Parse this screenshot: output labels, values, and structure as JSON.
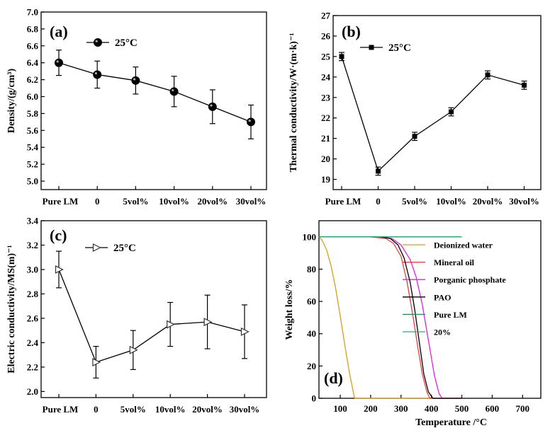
{
  "chart_data": [
    {
      "type": "line",
      "panel": "(a)",
      "categories": [
        "Pure LM",
        "0",
        "5vol%",
        "10vol%",
        "20vol%",
        "30vol%"
      ],
      "series": [
        {
          "name": "25°C",
          "values": [
            6.4,
            6.26,
            6.19,
            6.06,
            5.88,
            5.7
          ],
          "errors": [
            0.15,
            0.16,
            0.16,
            0.18,
            0.2,
            0.2
          ],
          "marker": "circle",
          "color": "#000000"
        }
      ],
      "ylabel": "Density/(g/cm³)",
      "ylim": [
        4.9,
        7.0
      ],
      "yticks": [
        "5.0",
        "5.2",
        "5.4",
        "5.6",
        "5.8",
        "6.0",
        "6.2",
        "6.4",
        "6.6",
        "6.8",
        "7.0"
      ],
      "legend": "top-left",
      "grid": false
    },
    {
      "type": "line",
      "panel": "(b)",
      "categories": [
        "Pure LM",
        "0",
        "5vol%",
        "10vol%",
        "20vol%",
        "30vol%"
      ],
      "series": [
        {
          "name": "25°C",
          "values": [
            25.0,
            19.4,
            21.1,
            22.3,
            24.1,
            23.6
          ],
          "errors": [
            0.2,
            0.2,
            0.2,
            0.2,
            0.2,
            0.2
          ],
          "marker": "square",
          "color": "#000000"
        }
      ],
      "ylabel": "Thermal conductivity/W·(m·k)⁻¹",
      "ylim": [
        18.5,
        27.0
      ],
      "yticks": [
        "19",
        "20",
        "21",
        "22",
        "23",
        "24",
        "25",
        "26",
        "27"
      ],
      "legend": "top-left",
      "grid": false
    },
    {
      "type": "line",
      "panel": "(c)",
      "categories": [
        "Pure LM",
        "0",
        "5vol%",
        "10vol%",
        "20vol%",
        "30vol%"
      ],
      "series": [
        {
          "name": "25°C",
          "values": [
            3.0,
            2.24,
            2.34,
            2.55,
            2.57,
            2.49
          ],
          "errors": [
            0.15,
            0.13,
            0.16,
            0.18,
            0.22,
            0.22
          ],
          "marker": "triangle-right",
          "color": "#000000"
        }
      ],
      "ylabel": "Electric conductivity/MS(m)⁻¹",
      "ylim": [
        1.95,
        3.4
      ],
      "yticks": [
        "2.0",
        "2.2",
        "2.4",
        "2.6",
        "2.8",
        "3.0",
        "3.2",
        "3.4"
      ],
      "legend": "top-left",
      "grid": false
    },
    {
      "type": "line",
      "panel": "(d)",
      "xlabel": "Temperature /°C",
      "ylabel": "Weight loss/%",
      "xlim": [
        30,
        760
      ],
      "ylim": [
        0,
        110
      ],
      "xticks": [
        100,
        200,
        300,
        400,
        500,
        600,
        700
      ],
      "yticks": [
        0,
        20,
        40,
        60,
        80,
        100
      ],
      "legend": "right",
      "grid": false,
      "series": [
        {
          "name": "Deionized water",
          "color": "#d4a017",
          "x": [
            30,
            40,
            55,
            70,
            85,
            100,
            115,
            130,
            145,
            148,
            500
          ],
          "y": [
            100,
            98,
            92,
            82,
            68,
            51,
            33,
            16,
            2,
            0,
            0
          ]
        },
        {
          "name": "Mineral oil",
          "color": "#e8413c",
          "x": [
            30,
            200,
            250,
            275,
            300,
            320,
            340,
            355,
            370,
            385,
            395,
            500
          ],
          "y": [
            100,
            100,
            99,
            96,
            88,
            72,
            50,
            32,
            15,
            4,
            0,
            0
          ]
        },
        {
          "name": "Porganic phosphate",
          "color": "#e020e0",
          "x": [
            30,
            230,
            270,
            300,
            330,
            350,
            370,
            390,
            410,
            425,
            435,
            500
          ],
          "y": [
            100,
            100,
            99,
            95,
            86,
            75,
            58,
            36,
            14,
            3,
            0,
            0
          ]
        },
        {
          "name": "PAO",
          "color": "#000000",
          "x": [
            30,
            230,
            265,
            290,
            310,
            330,
            345,
            360,
            375,
            390,
            405,
            500
          ],
          "y": [
            100,
            100,
            99,
            95,
            87,
            72,
            55,
            35,
            15,
            4,
            0,
            0
          ]
        },
        {
          "name": "Pure LM",
          "color": "#2e8b57",
          "x": [
            30,
            500
          ],
          "y": [
            100,
            100
          ]
        },
        {
          "name": "20%",
          "color": "#20b070",
          "x": [
            30,
            500
          ],
          "y": [
            100,
            100
          ]
        }
      ]
    }
  ]
}
